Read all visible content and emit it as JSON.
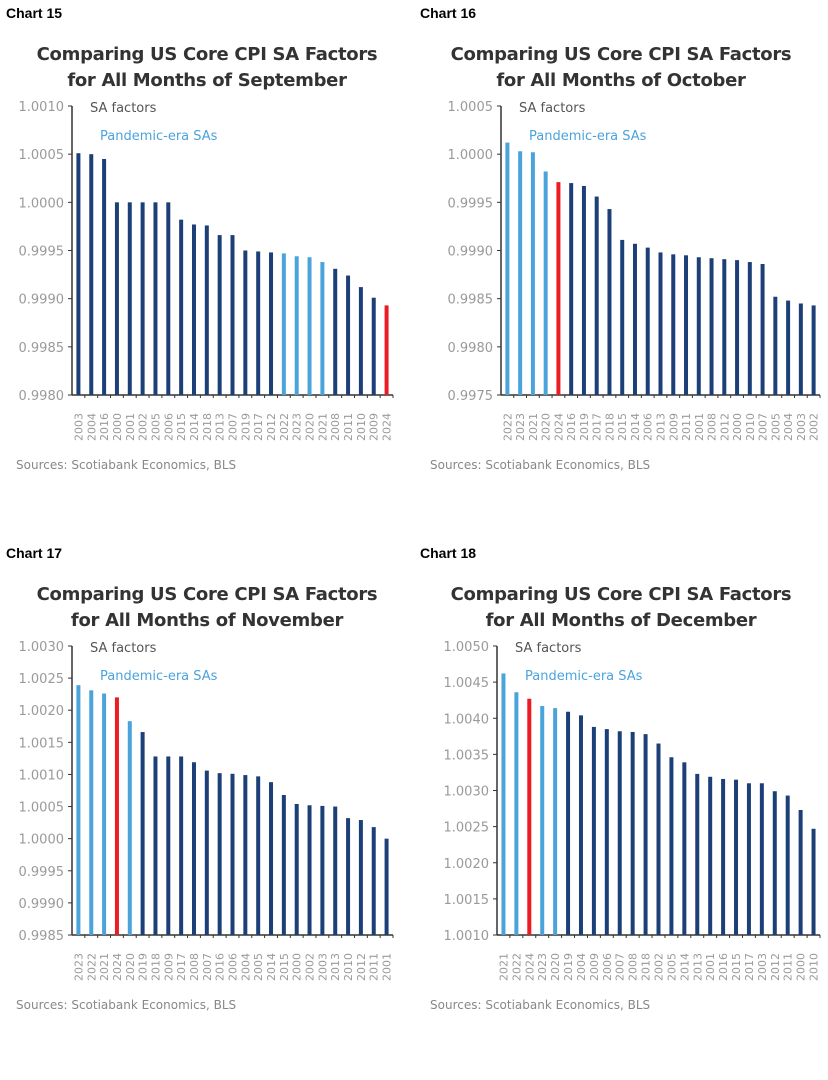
{
  "colors": {
    "normal": "#1d3f78",
    "pandemic": "#4ba3dc",
    "current": "#ec1c24",
    "axis_text": "#9a9a9a",
    "legend_text": "#555555"
  },
  "chart_data": [
    {
      "label": "Chart 15",
      "type": "bar",
      "title": [
        "Comparing US Core CPI SA Factors",
        "for All Months of September"
      ],
      "legend": [
        "SA factors",
        "Pandemic-era SAs"
      ],
      "ylim": [
        0.998,
        1.001
      ],
      "yticks": [
        "0.9980",
        "0.9985",
        "0.9990",
        "0.9995",
        "1.0000",
        "1.0005",
        "1.0010"
      ],
      "categories": [
        "2003",
        "2004",
        "2016",
        "2000",
        "2001",
        "2002",
        "2005",
        "2006",
        "2015",
        "2014",
        "2018",
        "2013",
        "2007",
        "2019",
        "2017",
        "2012",
        "2022",
        "2023",
        "2020",
        "2021",
        "2008",
        "2011",
        "2010",
        "2009",
        "2024"
      ],
      "values": [
        1.00051,
        1.0005,
        1.00045,
        1.0,
        1.0,
        1.0,
        1.0,
        1.0,
        0.99982,
        0.99977,
        0.99976,
        0.99966,
        0.99966,
        0.9995,
        0.99949,
        0.99948,
        0.99947,
        0.99944,
        0.99943,
        0.99938,
        0.99931,
        0.99924,
        0.99912,
        0.99901,
        0.99893
      ],
      "pandemic": [
        "2020",
        "2021",
        "2022",
        "2023"
      ],
      "current": "2024",
      "source": "Sources: Scotiabank Economics, BLS"
    },
    {
      "label": "Chart 16",
      "type": "bar",
      "title": [
        "Comparing US Core CPI SA Factors",
        "for All Months of October"
      ],
      "legend": [
        "SA factors",
        "Pandemic-era SAs"
      ],
      "ylim": [
        0.9975,
        1.0005
      ],
      "yticks": [
        "0.9975",
        "0.9980",
        "0.9985",
        "0.9990",
        "0.9995",
        "1.0000",
        "1.0005"
      ],
      "categories": [
        "2022",
        "2023",
        "2021",
        "2020",
        "2024",
        "2016",
        "2019",
        "2017",
        "2018",
        "2015",
        "2014",
        "2006",
        "2013",
        "2009",
        "2011",
        "2001",
        "2008",
        "2012",
        "2000",
        "2010",
        "2007",
        "2005",
        "2004",
        "2003",
        "2002"
      ],
      "values": [
        1.00012,
        1.00003,
        1.00002,
        0.99982,
        0.99971,
        0.9997,
        0.99967,
        0.99956,
        0.99943,
        0.99911,
        0.99907,
        0.99903,
        0.99898,
        0.99896,
        0.99895,
        0.99893,
        0.99892,
        0.99891,
        0.9989,
        0.99888,
        0.99886,
        0.99852,
        0.99848,
        0.99845,
        0.99843
      ],
      "pandemic": [
        "2020",
        "2021",
        "2022",
        "2023"
      ],
      "current": "2024",
      "source": "Sources: Scotiabank Economics, BLS"
    },
    {
      "label": "Chart 17",
      "type": "bar",
      "title": [
        "Comparing US Core CPI SA Factors",
        "for All Months of November"
      ],
      "legend": [
        "SA factors",
        "Pandemic-era SAs"
      ],
      "ylim": [
        0.9985,
        1.003
      ],
      "yticks": [
        "0.9985",
        "0.9990",
        "0.9995",
        "1.0000",
        "1.0005",
        "1.0010",
        "1.0015",
        "1.0020",
        "1.0025",
        "1.0030"
      ],
      "categories": [
        "2023",
        "2022",
        "2021",
        "2024",
        "2020",
        "2019",
        "2018",
        "2009",
        "2017",
        "2008",
        "2007",
        "2016",
        "2006",
        "2004",
        "2005",
        "2014",
        "2015",
        "2000",
        "2002",
        "2003",
        "2013",
        "2010",
        "2012",
        "2011",
        "2001"
      ],
      "values": [
        1.00239,
        1.00231,
        1.00226,
        1.0022,
        1.00183,
        1.00166,
        1.00128,
        1.00128,
        1.00128,
        1.00119,
        1.00106,
        1.00102,
        1.00101,
        1.00099,
        1.00097,
        1.00088,
        1.00068,
        1.00054,
        1.00052,
        1.00051,
        1.0005,
        1.00032,
        1.00029,
        1.00018,
        1.0
      ],
      "pandemic": [
        "2020",
        "2021",
        "2022",
        "2023"
      ],
      "current": "2024",
      "source": "Sources: Scotiabank Economics, BLS"
    },
    {
      "label": "Chart 18",
      "type": "bar",
      "title": [
        "Comparing US Core CPI SA Factors",
        "for All Months of December"
      ],
      "legend": [
        "SA factors",
        "Pandemic-era SAs"
      ],
      "ylim": [
        1.001,
        1.005
      ],
      "yticks": [
        "1.0010",
        "1.0015",
        "1.0020",
        "1.0025",
        "1.0030",
        "1.0035",
        "1.0040",
        "1.0045",
        "1.0050"
      ],
      "categories": [
        "2021",
        "2022",
        "2024",
        "2023",
        "2020",
        "2019",
        "2004",
        "2009",
        "2006",
        "2007",
        "2008",
        "2018",
        "2002",
        "2005",
        "2014",
        "2013",
        "2001",
        "2016",
        "2015",
        "2017",
        "2003",
        "2012",
        "2011",
        "2000",
        "2010"
      ],
      "values": [
        1.00462,
        1.00436,
        1.00427,
        1.00417,
        1.00414,
        1.00409,
        1.00404,
        1.00388,
        1.00385,
        1.00382,
        1.00381,
        1.00378,
        1.00365,
        1.00346,
        1.00339,
        1.00323,
        1.00319,
        1.00316,
        1.00315,
        1.0031,
        1.0031,
        1.00299,
        1.00293,
        1.00273,
        1.00247
      ],
      "pandemic": [
        "2020",
        "2021",
        "2022",
        "2023"
      ],
      "current": "2024",
      "source": "Sources: Scotiabank Economics, BLS"
    }
  ]
}
